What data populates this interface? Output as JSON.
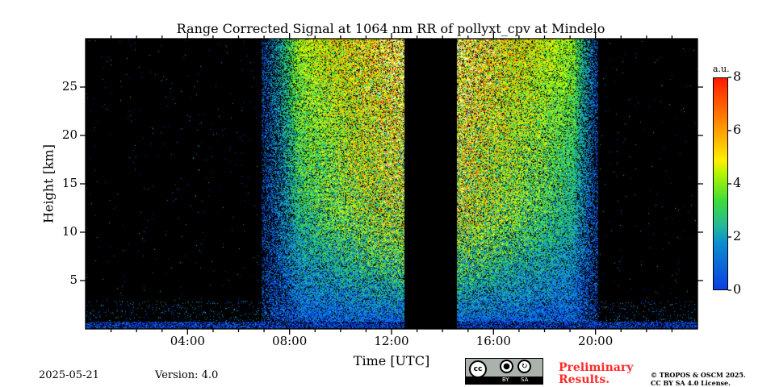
{
  "chart_data": {
    "type": "heatmap",
    "title": "Range Corrected Signal at 1064 nm RR of pollyxt_cpv at Mindelo",
    "xlabel": "Time [UTC]",
    "ylabel": "Height [km]",
    "xlim": [
      0,
      24
    ],
    "ylim": [
      0,
      30
    ],
    "xticks": [
      4,
      8,
      12,
      16,
      20
    ],
    "xtick_labels": [
      "04:00",
      "08:00",
      "12:00",
      "16:00",
      "20:00"
    ],
    "yticks": [
      5,
      10,
      15,
      20,
      25
    ],
    "ytick_labels": [
      "5",
      "10",
      "15",
      "20",
      "25"
    ],
    "colorbar": {
      "label": "a.u.",
      "range": [
        0,
        8
      ],
      "ticks": [
        0,
        2,
        4,
        6,
        8
      ],
      "tick_labels": [
        "0",
        "2",
        "4",
        "6",
        "8"
      ]
    },
    "no_data_interval_hours": [
      12.5,
      14.55
    ],
    "daytime_noise_interval_hours": [
      6.9,
      20.1
    ],
    "colors": {
      "background": "#000000",
      "low": "#0a3fe0",
      "mid": "#3fdc3a",
      "high": "#ff1a00"
    }
  },
  "footer": {
    "date": "2025-05-21",
    "version": "Version: 4.0",
    "cc_by": "BY",
    "cc_sa": "SA",
    "cc_logo": "cc",
    "preliminary_line1": "Preliminary",
    "preliminary_line2": "Results.",
    "copyright": "© TROPOS & OSCM 2025.",
    "license": "CC BY SA 4.0 License."
  }
}
